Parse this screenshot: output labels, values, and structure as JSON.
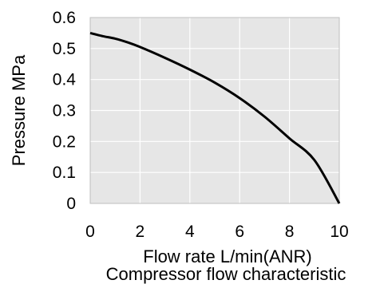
{
  "chart_data": {
    "type": "line",
    "title": "Compressor flow characteristic",
    "xlabel": "Flow rate L/min(ANR)",
    "ylabel": "Pressure MPa",
    "xlim": [
      0,
      10
    ],
    "ylim": [
      0,
      0.6
    ],
    "x_ticks": [
      "0",
      "2",
      "4",
      "6",
      "8",
      "10"
    ],
    "y_ticks": [
      "0",
      "0.1",
      "0.2",
      "0.3",
      "0.4",
      "0.5",
      "0.6"
    ],
    "grid": true,
    "legend": "none",
    "colors": {
      "plot_background": "#e6e6e6",
      "grid": "#ffffff",
      "line": "#000000"
    },
    "series": [
      {
        "x": [
          0,
          0.5,
          1,
          1.5,
          2,
          3,
          4,
          5,
          6,
          7,
          8,
          9,
          10
        ],
        "y": [
          0.55,
          0.54,
          0.532,
          0.52,
          0.505,
          0.47,
          0.432,
          0.39,
          0.34,
          0.28,
          0.21,
          0.14,
          0.0
        ]
      }
    ]
  }
}
